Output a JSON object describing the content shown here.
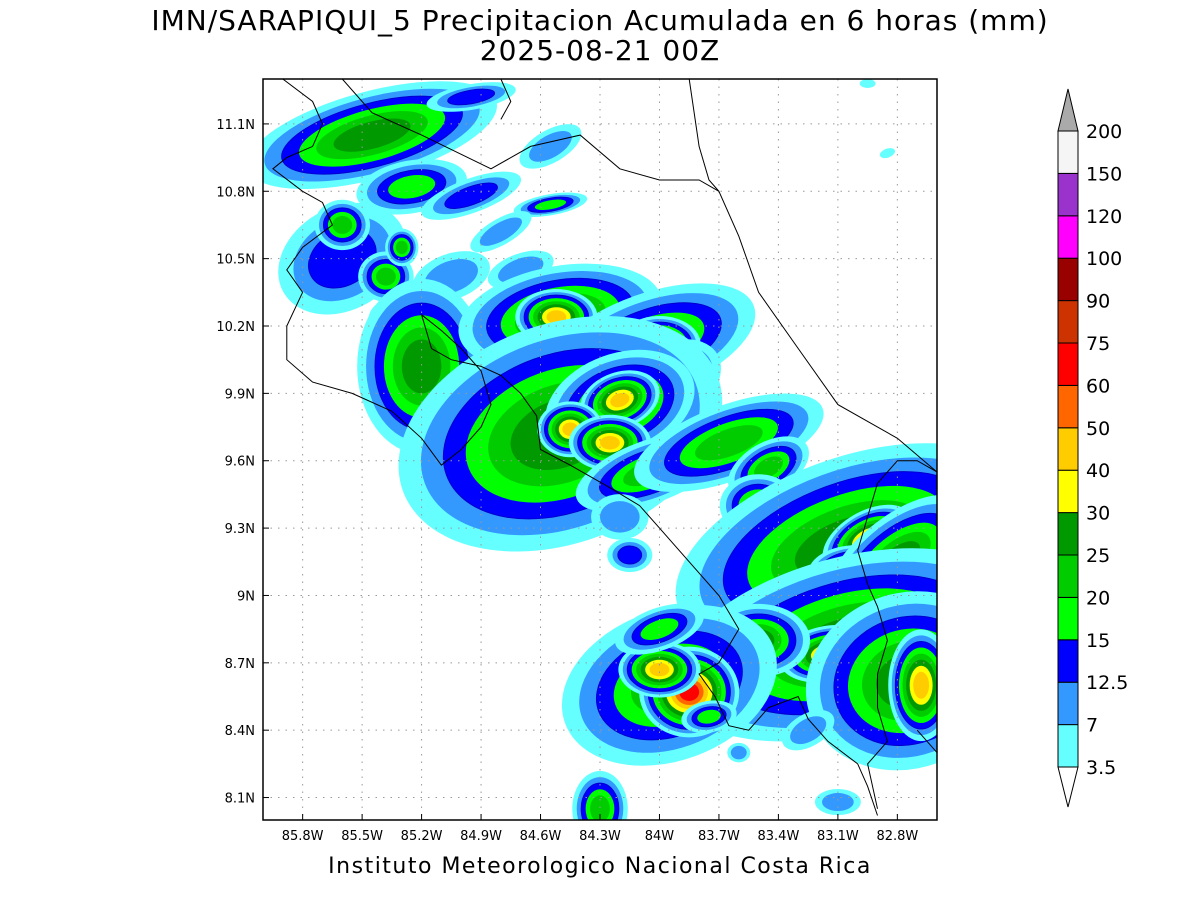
{
  "header": {
    "title_line1": "IMN/SARAPIQUI_5 Precipitacion Acumulada en 6 horas (mm)",
    "title_line2": "2025-08-21 00Z"
  },
  "footer": {
    "credit": "Instituto Meteorologico Nacional Costa Rica"
  },
  "map": {
    "lon_range": [
      -86.0,
      -82.6
    ],
    "lat_range": [
      8.0,
      11.3
    ],
    "lon_ticks": [
      {
        "value": -85.8,
        "label": "85.8W"
      },
      {
        "value": -85.5,
        "label": "85.5W"
      },
      {
        "value": -85.2,
        "label": "85.2W"
      },
      {
        "value": -84.9,
        "label": "84.9W"
      },
      {
        "value": -84.6,
        "label": "84.6W"
      },
      {
        "value": -84.3,
        "label": "84.3W"
      },
      {
        "value": -84.0,
        "label": "84W"
      },
      {
        "value": -83.7,
        "label": "83.7W"
      },
      {
        "value": -83.4,
        "label": "83.4W"
      },
      {
        "value": -83.1,
        "label": "83.1W"
      },
      {
        "value": -82.8,
        "label": "82.8W"
      }
    ],
    "lat_ticks": [
      {
        "value": 11.1,
        "label": "11.1N"
      },
      {
        "value": 10.8,
        "label": "10.8N"
      },
      {
        "value": 10.5,
        "label": "10.5N"
      },
      {
        "value": 10.2,
        "label": "10.2N"
      },
      {
        "value": 9.9,
        "label": "9.9N"
      },
      {
        "value": 9.6,
        "label": "9.6N"
      },
      {
        "value": 9.3,
        "label": "9.3N"
      },
      {
        "value": 9.0,
        "label": "9N"
      },
      {
        "value": 8.7,
        "label": "8.7N"
      },
      {
        "value": 8.4,
        "label": "8.4N"
      },
      {
        "value": 8.1,
        "label": "8.1N"
      }
    ],
    "grid": true
  },
  "colorbar": {
    "levels": [
      {
        "label": "3.5",
        "color": "#66ffff"
      },
      {
        "label": "7",
        "color": "#3399ff"
      },
      {
        "label": "12.5",
        "color": "#0000ff"
      },
      {
        "label": "15",
        "color": "#00ff00"
      },
      {
        "label": "20",
        "color": "#00cc00"
      },
      {
        "label": "25",
        "color": "#009900"
      },
      {
        "label": "30",
        "color": "#ffff00"
      },
      {
        "label": "40",
        "color": "#ffcc00"
      },
      {
        "label": "50",
        "color": "#ff6600"
      },
      {
        "label": "60",
        "color": "#ff0000"
      },
      {
        "label": "75",
        "color": "#cc3300"
      },
      {
        "label": "90",
        "color": "#990000"
      },
      {
        "label": "100",
        "color": "#ff00ff"
      },
      {
        "label": "120",
        "color": "#9933cc"
      },
      {
        "label": "150",
        "color": "#f5f5f5"
      },
      {
        "label": "200",
        "color": "#aaaaaa"
      }
    ],
    "under_color": "#ffffff",
    "over_color": "#aaaaaa"
  },
  "cells": [
    {
      "lon": -85.45,
      "lat": 11.05,
      "rx": 0.2,
      "ry": 0.06,
      "rot": -15,
      "level": 5
    },
    {
      "lon": -84.95,
      "lat": 11.22,
      "rx": 0.12,
      "ry": 0.03,
      "rot": -10,
      "level": 2
    },
    {
      "lon": -84.55,
      "lat": 11.0,
      "rx": 0.12,
      "ry": 0.05,
      "rot": -30,
      "level": 1
    },
    {
      "lon": -85.25,
      "lat": 10.82,
      "rx": 0.12,
      "ry": 0.05,
      "rot": -10,
      "level": 3
    },
    {
      "lon": -84.95,
      "lat": 10.78,
      "rx": 0.14,
      "ry": 0.04,
      "rot": -20,
      "level": 2
    },
    {
      "lon": -84.55,
      "lat": 10.74,
      "rx": 0.08,
      "ry": 0.02,
      "rot": -10,
      "level": 3
    },
    {
      "lon": -84.8,
      "lat": 10.62,
      "rx": 0.12,
      "ry": 0.04,
      "rot": -30,
      "level": 1
    },
    {
      "lon": -85.6,
      "lat": 10.5,
      "rx": 0.18,
      "ry": 0.12,
      "rot": -30,
      "level": 2
    },
    {
      "lon": -85.6,
      "lat": 10.65,
      "rx": 0.05,
      "ry": 0.04,
      "rot": 0,
      "level": 4
    },
    {
      "lon": -85.38,
      "lat": 10.42,
      "rx": 0.05,
      "ry": 0.04,
      "rot": 0,
      "level": 4
    },
    {
      "lon": -85.3,
      "lat": 10.55,
      "rx": 0.03,
      "ry": 0.03,
      "rot": 0,
      "level": 4
    },
    {
      "lon": -85.05,
      "lat": 10.42,
      "rx": 0.14,
      "ry": 0.07,
      "rot": -20,
      "level": 1
    },
    {
      "lon": -84.7,
      "lat": 10.45,
      "rx": 0.12,
      "ry": 0.05,
      "rot": -20,
      "level": 1
    },
    {
      "lon": -85.3,
      "lat": 10.28,
      "rx": 0.12,
      "ry": 0.05,
      "rot": -20,
      "level": 1
    },
    {
      "lon": -85.2,
      "lat": 10.02,
      "rx": 0.1,
      "ry": 0.12,
      "rot": 0,
      "level": 5
    },
    {
      "lon": -84.85,
      "lat": 10.22,
      "rx": 0.1,
      "ry": 0.04,
      "rot": -10,
      "level": 1
    },
    {
      "lon": -84.5,
      "lat": 10.24,
      "rx": 0.16,
      "ry": 0.07,
      "rot": -10,
      "level": 5
    },
    {
      "lon": -84.52,
      "lat": 10.24,
      "rx": 0.05,
      "ry": 0.03,
      "rot": 0,
      "level": 7
    },
    {
      "lon": -84.05,
      "lat": 10.12,
      "rx": 0.2,
      "ry": 0.08,
      "rot": -20,
      "level": 4
    },
    {
      "lon": -84.0,
      "lat": 10.12,
      "rx": 0.05,
      "ry": 0.03,
      "rot": 0,
      "level": 7
    },
    {
      "lon": -83.95,
      "lat": 9.95,
      "rx": 0.1,
      "ry": 0.06,
      "rot": -30,
      "level": 4
    },
    {
      "lon": -84.45,
      "lat": 9.9,
      "rx": 0.05,
      "ry": 0.04,
      "rot": 0,
      "level": 4
    },
    {
      "lon": -84.5,
      "lat": 9.72,
      "rx": 0.26,
      "ry": 0.15,
      "rot": -20,
      "level": 5
    },
    {
      "lon": -84.2,
      "lat": 9.85,
      "rx": 0.12,
      "ry": 0.07,
      "rot": -20,
      "level": 5
    },
    {
      "lon": -84.2,
      "lat": 9.87,
      "rx": 0.05,
      "ry": 0.03,
      "rot": -20,
      "level": 7
    },
    {
      "lon": -84.45,
      "lat": 9.74,
      "rx": 0.04,
      "ry": 0.03,
      "rot": 0,
      "level": 7
    },
    {
      "lon": -84.25,
      "lat": 9.68,
      "rx": 0.05,
      "ry": 0.03,
      "rot": 0,
      "level": 7
    },
    {
      "lon": -84.05,
      "lat": 9.55,
      "rx": 0.14,
      "ry": 0.05,
      "rot": -20,
      "level": 4
    },
    {
      "lon": -83.65,
      "lat": 9.68,
      "rx": 0.18,
      "ry": 0.06,
      "rot": -20,
      "level": 4
    },
    {
      "lon": -83.45,
      "lat": 9.57,
      "rx": 0.08,
      "ry": 0.04,
      "rot": -30,
      "level": 4
    },
    {
      "lon": -83.5,
      "lat": 9.4,
      "rx": 0.07,
      "ry": 0.05,
      "rot": 0,
      "level": 4
    },
    {
      "lon": -83.1,
      "lat": 9.47,
      "rx": 0.08,
      "ry": 0.04,
      "rot": -20,
      "level": 4
    },
    {
      "lon": -84.2,
      "lat": 9.35,
      "rx": 0.1,
      "ry": 0.07,
      "rot": 0,
      "level": 1
    },
    {
      "lon": -84.15,
      "lat": 9.18,
      "rx": 0.06,
      "ry": 0.04,
      "rot": 0,
      "level": 2
    },
    {
      "lon": -83.05,
      "lat": 9.22,
      "rx": 0.28,
      "ry": 0.12,
      "rot": -20,
      "level": 5
    },
    {
      "lon": -82.95,
      "lat": 9.25,
      "rx": 0.06,
      "ry": 0.03,
      "rot": -30,
      "level": 7
    },
    {
      "lon": -83.0,
      "lat": 9.1,
      "rx": 0.06,
      "ry": 0.03,
      "rot": 0,
      "level": 7
    },
    {
      "lon": -82.8,
      "lat": 9.15,
      "rx": 0.14,
      "ry": 0.06,
      "rot": -40,
      "level": 5
    },
    {
      "lon": -83.3,
      "lat": 8.9,
      "rx": 0.22,
      "ry": 0.14,
      "rot": -20,
      "level": 1
    },
    {
      "lon": -83.05,
      "lat": 8.78,
      "rx": 0.28,
      "ry": 0.12,
      "rot": -15,
      "level": 5
    },
    {
      "lon": -83.15,
      "lat": 8.74,
      "rx": 0.06,
      "ry": 0.03,
      "rot": -10,
      "level": 7
    },
    {
      "lon": -82.85,
      "lat": 8.85,
      "rx": 0.05,
      "ry": 0.03,
      "rot": -30,
      "level": 7
    },
    {
      "lon": -83.5,
      "lat": 8.8,
      "rx": 0.08,
      "ry": 0.05,
      "rot": 0,
      "level": 5
    },
    {
      "lon": -82.75,
      "lat": 8.62,
      "rx": 0.16,
      "ry": 0.12,
      "rot": -20,
      "level": 5
    },
    {
      "lon": -82.68,
      "lat": 8.6,
      "rx": 0.04,
      "ry": 0.06,
      "rot": 0,
      "level": 7
    },
    {
      "lon": -83.95,
      "lat": 8.6,
      "rx": 0.2,
      "ry": 0.12,
      "rot": -20,
      "level": 4
    },
    {
      "lon": -83.85,
      "lat": 8.57,
      "rx": 0.05,
      "ry": 0.04,
      "rot": 0,
      "level": 9
    },
    {
      "lon": -84.0,
      "lat": 8.67,
      "rx": 0.05,
      "ry": 0.03,
      "rot": 0,
      "level": 7
    },
    {
      "lon": -84.0,
      "lat": 8.85,
      "rx": 0.1,
      "ry": 0.04,
      "rot": -20,
      "level": 3
    },
    {
      "lon": -83.75,
      "lat": 8.46,
      "rx": 0.06,
      "ry": 0.03,
      "rot": -10,
      "level": 3
    },
    {
      "lon": -84.3,
      "lat": 8.05,
      "rx": 0.05,
      "ry": 0.06,
      "rot": 0,
      "level": 4
    },
    {
      "lon": -83.1,
      "lat": 8.08,
      "rx": 0.08,
      "ry": 0.04,
      "rot": 0,
      "level": 1
    },
    {
      "lon": -83.25,
      "lat": 8.4,
      "rx": 0.1,
      "ry": 0.05,
      "rot": -30,
      "level": 1
    },
    {
      "lon": -83.6,
      "lat": 8.3,
      "rx": 0.04,
      "ry": 0.03,
      "rot": 0,
      "level": 1
    },
    {
      "lon": -82.85,
      "lat": 10.97,
      "rx": 0.04,
      "ry": 0.02,
      "rot": -20,
      "level": 0
    },
    {
      "lon": -82.95,
      "lat": 11.28,
      "rx": 0.04,
      "ry": 0.02,
      "rot": 0,
      "level": 0
    }
  ],
  "coastlines": [
    [
      [
        -85.9,
        11.3
      ],
      [
        -85.75,
        11.2
      ],
      [
        -85.7,
        11.1
      ],
      [
        -85.75,
        11.0
      ],
      [
        -85.88,
        10.95
      ],
      [
        -85.95,
        10.9
      ],
      [
        -85.8,
        10.8
      ],
      [
        -85.7,
        10.75
      ],
      [
        -85.65,
        10.65
      ],
      [
        -85.8,
        10.55
      ],
      [
        -85.88,
        10.45
      ],
      [
        -85.8,
        10.35
      ],
      [
        -85.88,
        10.2
      ],
      [
        -85.88,
        10.05
      ],
      [
        -85.75,
        9.95
      ],
      [
        -85.55,
        9.9
      ],
      [
        -85.35,
        9.82
      ],
      [
        -85.2,
        9.7
      ],
      [
        -85.1,
        9.58
      ],
      [
        -85.0,
        9.65
      ],
      [
        -84.9,
        9.75
      ],
      [
        -84.85,
        9.85
      ],
      [
        -84.9,
        10.0
      ],
      [
        -85.0,
        10.1
      ],
      [
        -85.1,
        10.18
      ],
      [
        -85.2,
        10.25
      ],
      [
        -85.15,
        10.1
      ],
      [
        -85.05,
        10.05
      ],
      [
        -84.9,
        10.02
      ],
      [
        -84.8,
        9.98
      ],
      [
        -84.7,
        9.9
      ],
      [
        -84.62,
        9.8
      ],
      [
        -84.6,
        9.65
      ],
      [
        -84.45,
        9.58
      ],
      [
        -84.25,
        9.48
      ],
      [
        -84.1,
        9.4
      ],
      [
        -84.0,
        9.3
      ],
      [
        -83.85,
        9.15
      ],
      [
        -83.7,
        9.0
      ],
      [
        -83.6,
        8.85
      ],
      [
        -83.7,
        8.7
      ],
      [
        -83.8,
        8.65
      ],
      [
        -83.72,
        8.55
      ],
      [
        -83.65,
        8.42
      ],
      [
        -83.55,
        8.4
      ],
      [
        -83.45,
        8.5
      ],
      [
        -83.3,
        8.55
      ],
      [
        -83.25,
        8.45
      ],
      [
        -83.15,
        8.35
      ],
      [
        -83.0,
        8.25
      ],
      [
        -82.95,
        8.15
      ],
      [
        -82.9,
        8.02
      ]
    ],
    [
      [
        -85.6,
        11.3
      ],
      [
        -85.45,
        11.15
      ],
      [
        -85.2,
        11.05
      ],
      [
        -84.85,
        10.9
      ],
      [
        -84.65,
        11.0
      ],
      [
        -84.4,
        11.05
      ],
      [
        -84.2,
        10.9
      ],
      [
        -84.0,
        10.85
      ],
      [
        -83.8,
        10.85
      ],
      [
        -83.7,
        10.8
      ]
    ],
    [
      [
        -84.8,
        11.3
      ],
      [
        -84.75,
        11.2
      ],
      [
        -84.8,
        11.12
      ]
    ],
    [
      [
        -83.85,
        11.3
      ],
      [
        -83.8,
        11.0
      ],
      [
        -83.75,
        10.85
      ],
      [
        -83.7,
        10.8
      ],
      [
        -83.6,
        10.6
      ],
      [
        -83.5,
        10.35
      ],
      [
        -83.3,
        10.1
      ],
      [
        -83.1,
        9.85
      ],
      [
        -82.8,
        9.7
      ],
      [
        -82.6,
        9.55
      ]
    ],
    [
      [
        -82.6,
        9.55
      ],
      [
        -82.7,
        9.6
      ],
      [
        -82.8,
        9.6
      ],
      [
        -82.9,
        9.5
      ],
      [
        -82.95,
        9.35
      ],
      [
        -83.0,
        9.2
      ],
      [
        -82.95,
        9.05
      ],
      [
        -82.9,
        8.95
      ],
      [
        -82.85,
        8.8
      ],
      [
        -82.9,
        8.65
      ],
      [
        -82.9,
        8.5
      ],
      [
        -82.85,
        8.35
      ],
      [
        -82.95,
        8.25
      ],
      [
        -82.9,
        8.05
      ]
    ],
    [
      [
        -82.7,
        8.4
      ],
      [
        -82.6,
        8.3
      ]
    ]
  ]
}
